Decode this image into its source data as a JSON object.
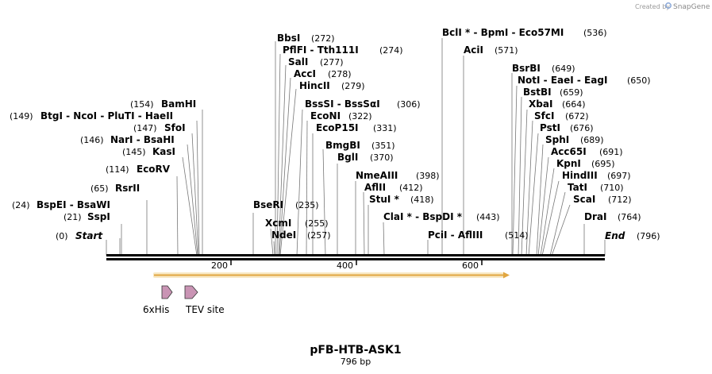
{
  "watermark": {
    "created_by": "Created by",
    "brand": "SnapGene"
  },
  "map": {
    "name": "pFB-HTB-ASK1",
    "length_label": "796 bp",
    "start_label": "Start",
    "start_pos": "(0)",
    "end_label": "End",
    "end_pos": "(796)",
    "ruler_ticks": [
      "200",
      "400",
      "600"
    ],
    "sites": [
      {
        "id": "bbsi",
        "name": "BbsI",
        "pos": "(272)"
      },
      {
        "id": "pflfi",
        "name": "PflFI  -  Tth111I",
        "pos": "(274)"
      },
      {
        "id": "sali",
        "name": "SalI",
        "pos": "(277)"
      },
      {
        "id": "acci",
        "name": "AccI",
        "pos": "(278)"
      },
      {
        "id": "hincii",
        "name": "HincII",
        "pos": "(279)"
      },
      {
        "id": "bsssi",
        "name": "BssSI  -  BssSαI",
        "pos": "(306)"
      },
      {
        "id": "econi",
        "name": "EcoNI",
        "pos": "(322)"
      },
      {
        "id": "ecop15i",
        "name": "EcoP15I",
        "pos": "(331)"
      },
      {
        "id": "bmgbi",
        "name": "BmgBI",
        "pos": "(351)"
      },
      {
        "id": "bglI",
        "name": "BglI",
        "pos": "(370)"
      },
      {
        "id": "nmeaiii",
        "name": "NmeAIII",
        "pos": "(398)"
      },
      {
        "id": "aflii",
        "name": "AflII",
        "pos": "(412)"
      },
      {
        "id": "stui",
        "name": "StuI *",
        "pos": "(418)"
      },
      {
        "id": "clai",
        "name": "ClaI *  -  BspDI *",
        "pos": "(443)"
      },
      {
        "id": "pcii",
        "name": "PciI  -  AflIII",
        "pos": "(514)"
      },
      {
        "id": "bcli",
        "name": "BclI *  -  BpmI  -  Eco57MI",
        "pos": "(536)"
      },
      {
        "id": "acii",
        "name": "AciI",
        "pos": "(571)"
      },
      {
        "id": "bsrbi",
        "name": "BsrBI",
        "pos": "(649)"
      },
      {
        "id": "noti",
        "name": "NotI  -  EaeI  -  EagI",
        "pos": "(650)"
      },
      {
        "id": "bstbi",
        "name": "BstBI",
        "pos": "(659)"
      },
      {
        "id": "xbai",
        "name": "XbaI",
        "pos": "(664)"
      },
      {
        "id": "sfci",
        "name": "SfcI",
        "pos": "(672)"
      },
      {
        "id": "psti",
        "name": "PstI",
        "pos": "(676)"
      },
      {
        "id": "sphi",
        "name": "SphI",
        "pos": "(689)"
      },
      {
        "id": "acc65i",
        "name": "Acc65I",
        "pos": "(691)"
      },
      {
        "id": "kpni",
        "name": "KpnI",
        "pos": "(695)"
      },
      {
        "id": "hindiii",
        "name": "HindIII",
        "pos": "(697)"
      },
      {
        "id": "tati",
        "name": "TatI",
        "pos": "(710)"
      },
      {
        "id": "scai",
        "name": "ScaI",
        "pos": "(712)"
      },
      {
        "id": "drai",
        "name": "DraI",
        "pos": "(764)"
      },
      {
        "id": "bseri",
        "name": "BseRI",
        "pos": "(235)"
      },
      {
        "id": "xcmi",
        "name": "XcmI",
        "pos": "(255)"
      },
      {
        "id": "ndei",
        "name": "NdeI",
        "pos": "(257)"
      },
      {
        "id": "bamhi",
        "name": "BamHI",
        "pos": "(154)"
      },
      {
        "id": "btgi",
        "name": "BtgI  -  NcoI  -  PluTI  -  HaeII",
        "pos": "(149)"
      },
      {
        "id": "sfoi",
        "name": "SfoI",
        "pos": "(147)"
      },
      {
        "id": "nari",
        "name": "NarI  -  BsaHI",
        "pos": "(146)"
      },
      {
        "id": "kasi",
        "name": "KasI",
        "pos": "(145)"
      },
      {
        "id": "ecorv",
        "name": "EcoRV",
        "pos": "(114)"
      },
      {
        "id": "rsrii",
        "name": "RsrII",
        "pos": "(65)"
      },
      {
        "id": "bspei",
        "name": "BspEI  -  BsaWI",
        "pos": "(24)"
      },
      {
        "id": "sspi",
        "name": "SspI",
        "pos": "(21)"
      }
    ],
    "features": [
      {
        "id": "6xhis",
        "label": "6xHis",
        "color": "#c994b4"
      },
      {
        "id": "tev",
        "label": "TEV site",
        "color": "#c994b4"
      }
    ],
    "orf_color": "#f0c060"
  }
}
